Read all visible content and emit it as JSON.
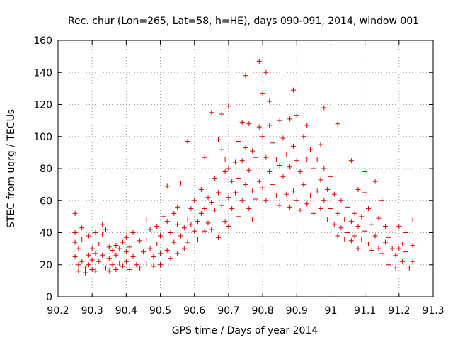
{
  "chart_data": {
    "type": "scatter",
    "title": "Rec. chur (Lon=265, Lat=58, h=HE), days 090-091, 2014, window 001",
    "xlabel": "GPS time / Days of year 2014",
    "ylabel": "STEC from uqrg / TECUs",
    "xlim": [
      90.2,
      91.3
    ],
    "ylim": [
      0,
      160
    ],
    "x_ticks": [
      "90.2",
      "90.3",
      "90.4",
      "90.5",
      "90.6",
      "90.7",
      "90.8",
      "90.9",
      "91",
      "91.1",
      "91.2",
      "91.3"
    ],
    "y_ticks": [
      "0",
      "20",
      "40",
      "60",
      "80",
      "100",
      "120",
      "140",
      "160"
    ],
    "grid": true,
    "legend": "none",
    "marker": "plus",
    "color": "#d40000",
    "points": [
      [
        90.25,
        52
      ],
      [
        90.25,
        40
      ],
      [
        90.25,
        34
      ],
      [
        90.26,
        30
      ],
      [
        90.25,
        25
      ],
      [
        90.26,
        20
      ],
      [
        90.26,
        16
      ],
      [
        90.27,
        43
      ],
      [
        90.27,
        36
      ],
      [
        90.27,
        22
      ],
      [
        90.28,
        18
      ],
      [
        90.28,
        15
      ],
      [
        90.29,
        38
      ],
      [
        90.29,
        26
      ],
      [
        90.29,
        20
      ],
      [
        90.3,
        30
      ],
      [
        90.3,
        23
      ],
      [
        90.3,
        17
      ],
      [
        90.31,
        40
      ],
      [
        90.31,
        27
      ],
      [
        90.31,
        16
      ],
      [
        90.32,
        33
      ],
      [
        90.32,
        22
      ],
      [
        90.33,
        45
      ],
      [
        90.33,
        39
      ],
      [
        90.33,
        26
      ],
      [
        90.34,
        18
      ],
      [
        90.34,
        42
      ],
      [
        90.35,
        31
      ],
      [
        90.35,
        24
      ],
      [
        90.35,
        16
      ],
      [
        90.36,
        29
      ],
      [
        90.36,
        20
      ],
      [
        90.37,
        32
      ],
      [
        90.37,
        26
      ],
      [
        90.37,
        17
      ],
      [
        90.38,
        30
      ],
      [
        90.38,
        21
      ],
      [
        90.39,
        34
      ],
      [
        90.39,
        19
      ],
      [
        90.4,
        37
      ],
      [
        90.4,
        28
      ],
      [
        90.4,
        22
      ],
      [
        90.41,
        31
      ],
      [
        90.41,
        17
      ],
      [
        90.42,
        40
      ],
      [
        90.42,
        25
      ],
      [
        90.43,
        20
      ],
      [
        90.44,
        35
      ],
      [
        90.44,
        18
      ],
      [
        90.45,
        28
      ],
      [
        90.46,
        48
      ],
      [
        90.46,
        36
      ],
      [
        90.46,
        21
      ],
      [
        90.47,
        42
      ],
      [
        90.47,
        30
      ],
      [
        90.48,
        25
      ],
      [
        90.48,
        19
      ],
      [
        90.49,
        44
      ],
      [
        90.49,
        33
      ],
      [
        90.5,
        38
      ],
      [
        90.5,
        27
      ],
      [
        90.5,
        20
      ],
      [
        90.51,
        50
      ],
      [
        90.51,
        36
      ],
      [
        90.52,
        69
      ],
      [
        90.52,
        47
      ],
      [
        90.52,
        29
      ],
      [
        90.53,
        40
      ],
      [
        90.53,
        24
      ],
      [
        90.54,
        52
      ],
      [
        90.54,
        34
      ],
      [
        90.55,
        56
      ],
      [
        90.55,
        45
      ],
      [
        90.55,
        27
      ],
      [
        90.56,
        71
      ],
      [
        90.56,
        38
      ],
      [
        90.57,
        43
      ],
      [
        90.57,
        30
      ],
      [
        90.58,
        97
      ],
      [
        90.58,
        48
      ],
      [
        90.58,
        34
      ],
      [
        90.59,
        55
      ],
      [
        90.59,
        45
      ],
      [
        90.6,
        60
      ],
      [
        90.6,
        41
      ],
      [
        90.61,
        47
      ],
      [
        90.61,
        36
      ],
      [
        90.62,
        67
      ],
      [
        90.62,
        52
      ],
      [
        90.63,
        87
      ],
      [
        90.63,
        55
      ],
      [
        90.63,
        41
      ],
      [
        90.64,
        62
      ],
      [
        90.64,
        46
      ],
      [
        90.65,
        115
      ],
      [
        90.65,
        59
      ],
      [
        90.65,
        42
      ],
      [
        90.66,
        74
      ],
      [
        90.66,
        54
      ],
      [
        90.67,
        98
      ],
      [
        90.67,
        65
      ],
      [
        90.67,
        37
      ],
      [
        90.68,
        114
      ],
      [
        90.68,
        92
      ],
      [
        90.68,
        57
      ],
      [
        90.69,
        86
      ],
      [
        90.69,
        78
      ],
      [
        90.69,
        47
      ],
      [
        90.7,
        119
      ],
      [
        90.7,
        80
      ],
      [
        90.7,
        62
      ],
      [
        90.7,
        44
      ],
      [
        90.71,
        72
      ],
      [
        90.71,
        55
      ],
      [
        90.72,
        84
      ],
      [
        90.72,
        65
      ],
      [
        90.73,
        97
      ],
      [
        90.73,
        74
      ],
      [
        90.73,
        50
      ],
      [
        90.74,
        109
      ],
      [
        90.74,
        85
      ],
      [
        90.74,
        60
      ],
      [
        90.75,
        138
      ],
      [
        90.75,
        93
      ],
      [
        90.75,
        70
      ],
      [
        90.76,
        108
      ],
      [
        90.76,
        79
      ],
      [
        90.76,
        55
      ],
      [
        90.77,
        91
      ],
      [
        90.77,
        66
      ],
      [
        90.77,
        48
      ],
      [
        90.78,
        87
      ],
      [
        90.78,
        61
      ],
      [
        90.79,
        147
      ],
      [
        90.79,
        106
      ],
      [
        90.79,
        72
      ],
      [
        90.8,
        127
      ],
      [
        90.8,
        100
      ],
      [
        90.8,
        68
      ],
      [
        90.81,
        140
      ],
      [
        90.81,
        87
      ],
      [
        90.81,
        60
      ],
      [
        90.82,
        122
      ],
      [
        90.82,
        107
      ],
      [
        90.82,
        78
      ],
      [
        90.83,
        96
      ],
      [
        90.83,
        70
      ],
      [
        90.84,
        86
      ],
      [
        90.84,
        63
      ],
      [
        90.85,
        110
      ],
      [
        90.85,
        82
      ],
      [
        90.85,
        57
      ],
      [
        90.86,
        99
      ],
      [
        90.86,
        75
      ],
      [
        90.87,
        89
      ],
      [
        90.87,
        64
      ],
      [
        90.88,
        111
      ],
      [
        90.88,
        81
      ],
      [
        90.88,
        56
      ],
      [
        90.89,
        129
      ],
      [
        90.89,
        94
      ],
      [
        90.89,
        66
      ],
      [
        90.9,
        113
      ],
      [
        90.9,
        85
      ],
      [
        90.9,
        60
      ],
      [
        90.91,
        78
      ],
      [
        90.91,
        54
      ],
      [
        90.92,
        100
      ],
      [
        90.92,
        70
      ],
      [
        90.93,
        107
      ],
      [
        90.93,
        86
      ],
      [
        90.93,
        58
      ],
      [
        90.94,
        92
      ],
      [
        90.94,
        63
      ],
      [
        90.95,
        80
      ],
      [
        90.95,
        52
      ],
      [
        90.96,
        86
      ],
      [
        90.96,
        66
      ],
      [
        90.97,
        95
      ],
      [
        90.97,
        73
      ],
      [
        90.97,
        55
      ],
      [
        90.98,
        118
      ],
      [
        90.98,
        80
      ],
      [
        90.98,
        60
      ],
      [
        90.99,
        67
      ],
      [
        90.99,
        48
      ],
      [
        91.0,
        75
      ],
      [
        91.0,
        55
      ],
      [
        91.01,
        64
      ],
      [
        91.01,
        45
      ],
      [
        91.02,
        108
      ],
      [
        91.02,
        52
      ],
      [
        91.02,
        38
      ],
      [
        91.03,
        60
      ],
      [
        91.03,
        43
      ],
      [
        91.04,
        48
      ],
      [
        91.04,
        36
      ],
      [
        91.05,
        56
      ],
      [
        91.05,
        40
      ],
      [
        91.06,
        85
      ],
      [
        91.06,
        47
      ],
      [
        91.06,
        35
      ],
      [
        91.07,
        52
      ],
      [
        91.07,
        38
      ],
      [
        91.08,
        67
      ],
      [
        91.08,
        44
      ],
      [
        91.08,
        30
      ],
      [
        91.09,
        50
      ],
      [
        91.09,
        36
      ],
      [
        91.1,
        78
      ],
      [
        91.1,
        65
      ],
      [
        91.1,
        41
      ],
      [
        91.11,
        55
      ],
      [
        91.11,
        33
      ],
      [
        91.12,
        45
      ],
      [
        91.12,
        29
      ],
      [
        91.13,
        72
      ],
      [
        91.13,
        38
      ],
      [
        91.14,
        49
      ],
      [
        91.14,
        30
      ],
      [
        91.15,
        60
      ],
      [
        91.15,
        27
      ],
      [
        91.16,
        44
      ],
      [
        91.16,
        34
      ],
      [
        91.17,
        37
      ],
      [
        91.17,
        20
      ],
      [
        91.18,
        30
      ],
      [
        91.19,
        26
      ],
      [
        91.19,
        18
      ],
      [
        91.2,
        44
      ],
      [
        91.2,
        30
      ],
      [
        91.21,
        33
      ],
      [
        91.21,
        22
      ],
      [
        91.22,
        40
      ],
      [
        91.22,
        28
      ],
      [
        91.23,
        18
      ],
      [
        91.24,
        48
      ],
      [
        91.24,
        32
      ],
      [
        91.24,
        22
      ]
    ]
  }
}
